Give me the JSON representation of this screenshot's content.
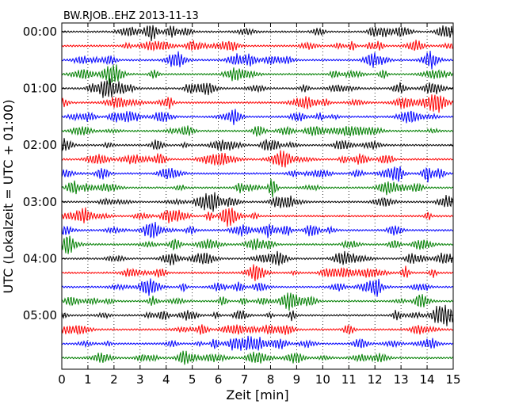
{
  "chart_data": {
    "type": "line",
    "title": "BW.RJOB..EHZ 2013-11-13",
    "xlabel": "Zeit  [min]",
    "ylabel": "UTC (Lokalzeit = UTC + 01:00)",
    "xlim": [
      0,
      15
    ],
    "x_ticks": [
      "0",
      "1",
      "2",
      "3",
      "4",
      "5",
      "6",
      "7",
      "8",
      "9",
      "10",
      "11",
      "12",
      "13",
      "14",
      "15"
    ],
    "y_ticks": [
      "00:00",
      "01:00",
      "02:00",
      "03:00",
      "04:00",
      "05:00"
    ],
    "rows_per_hour": 4,
    "row_minutes": 15,
    "row_count": 24,
    "grid": "vertical-dotted",
    "colors": [
      "#000000",
      "#ff0000",
      "#0000ff",
      "#007f00"
    ]
  }
}
